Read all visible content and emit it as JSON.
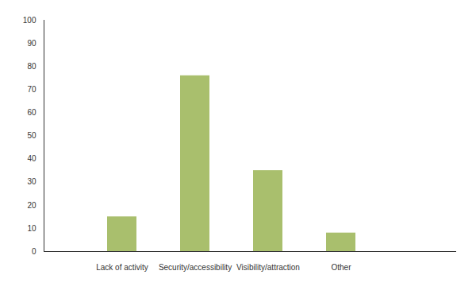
{
  "chart_data": {
    "type": "bar",
    "categories": [
      "Lack of activity",
      "Security/accessibility",
      "Visibility/attraction",
      "Other"
    ],
    "values": [
      15,
      76,
      35,
      8
    ],
    "color": "#a9bf6d",
    "ylim": [
      0,
      100
    ],
    "yticks": [
      0,
      10,
      20,
      30,
      40,
      50,
      60,
      70,
      80,
      90,
      100
    ],
    "grid": false
  }
}
